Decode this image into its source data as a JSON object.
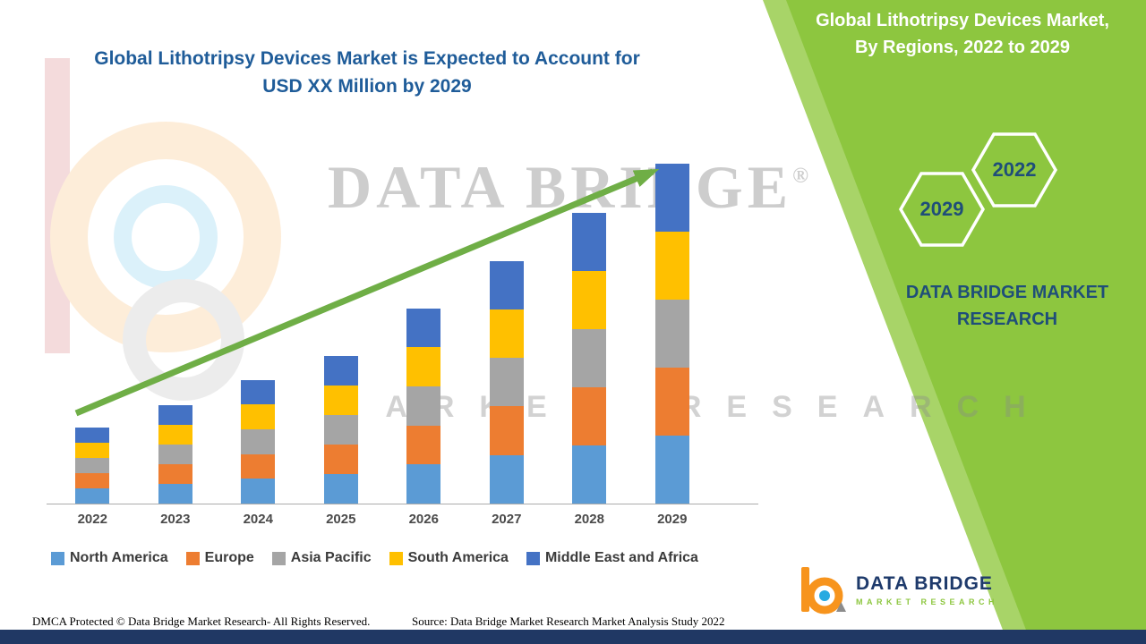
{
  "colors": {
    "panel_green": "#8DC63F",
    "panel_green_stripe": "#A8D468",
    "title_blue": "#1F5C99",
    "navy": "#1F4E79",
    "bottom_bar": "#203864",
    "arrow_green": "#6FAE46"
  },
  "chart_heading": {
    "line1": "Global Lithotripsy Devices Market is Expected to Account for",
    "line2": "USD XX Million by 2029"
  },
  "chart_data": {
    "type": "bar",
    "stacked": true,
    "title": "Global Lithotripsy Devices Market is Expected to Account for USD XX Million by 2029",
    "categories": [
      "2022",
      "2023",
      "2024",
      "2025",
      "2026",
      "2027",
      "2028",
      "2029"
    ],
    "series": [
      {
        "name": "North America",
        "color": "#5B9BD5",
        "values": [
          4.5,
          5.8,
          7.3,
          8.7,
          11.5,
          14.3,
          17.1,
          20
        ]
      },
      {
        "name": "Europe",
        "color": "#ED7D31",
        "values": [
          4.5,
          5.8,
          7.3,
          8.7,
          11.5,
          14.3,
          17.1,
          20
        ]
      },
      {
        "name": "Asia Pacific",
        "color": "#A5A5A5",
        "values": [
          4.5,
          5.8,
          7.3,
          8.7,
          11.5,
          14.3,
          17.1,
          20
        ]
      },
      {
        "name": "South America",
        "color": "#FFC000",
        "values": [
          4.5,
          5.8,
          7.3,
          8.7,
          11.5,
          14.3,
          17.1,
          20
        ]
      },
      {
        "name": "Middle East and Africa",
        "color": "#4472C4",
        "values": [
          4.5,
          5.8,
          7.3,
          8.7,
          11.5,
          14.3,
          17.1,
          20
        ]
      }
    ],
    "xlabel": "",
    "ylabel": "",
    "y_axis_visible": false,
    "ylim": [
      0,
      100
    ],
    "units": "relative index (actual values undisclosed, shown as USD XX Million)",
    "grid": false,
    "legend_position": "bottom",
    "trend_arrow": true
  },
  "right_panel": {
    "heading_line1": "Global Lithotripsy Devices Market,",
    "heading_line2": "By Regions, 2022 to 2029",
    "hexagons": [
      {
        "label": "2029"
      },
      {
        "label": "2022"
      }
    ],
    "brand_line1": "DATA BRIDGE MARKET",
    "brand_line2": "RESEARCH"
  },
  "watermark": {
    "big_text": "DATA BRIDGE",
    "reg": "®",
    "sub_text": "MARKET RESEARCH"
  },
  "footer": {
    "dmca": "DMCA Protected © Data Bridge Market Research- All Rights Reserved.",
    "source": "Source: Data Bridge Market Research Market Analysis Study 2022"
  },
  "logo": {
    "name": "DATA BRIDGE",
    "tagline": "MARKET RESEARCH"
  }
}
